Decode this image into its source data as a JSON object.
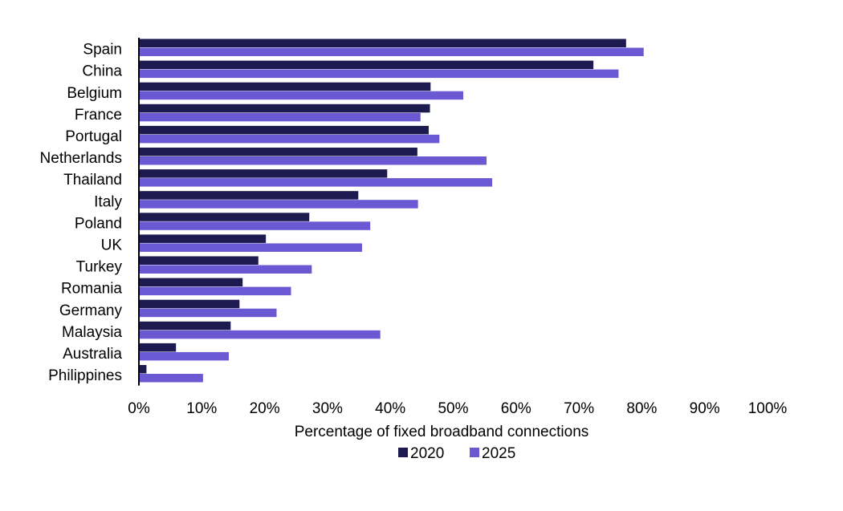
{
  "chart_data": {
    "type": "bar",
    "orientation": "horizontal",
    "categories": [
      "Spain",
      "China",
      "Belgium",
      "France",
      "Portugal",
      "Netherlands",
      "Thailand",
      "Italy",
      "Poland",
      "UK",
      "Turkey",
      "Romania",
      "Germany",
      "Malaysia",
      "Australia",
      "Philippines"
    ],
    "series": [
      {
        "name": "2020",
        "color": "#1c1a4f",
        "values": [
          77.5,
          72.3,
          46.4,
          46.3,
          46.1,
          44.3,
          39.5,
          34.9,
          27.1,
          20.2,
          19.0,
          16.5,
          16.0,
          14.6,
          5.9,
          1.2
        ]
      },
      {
        "name": "2025",
        "color": "#6b58d3",
        "values": [
          80.3,
          76.3,
          51.6,
          44.8,
          47.8,
          55.3,
          56.2,
          44.4,
          36.8,
          35.5,
          27.5,
          24.2,
          21.9,
          38.4,
          14.3,
          10.2
        ]
      }
    ],
    "xlabel": "Percentage of fixed broadband connections",
    "ylabel": "",
    "xlim": [
      0,
      100
    ],
    "xticks": [
      "0%",
      "10%",
      "20%",
      "30%",
      "40%",
      "50%",
      "60%",
      "70%",
      "80%",
      "90%",
      "100%"
    ],
    "grid": false,
    "legend": {
      "placement": "bottom-center",
      "entries": [
        "2020",
        "2025"
      ]
    }
  }
}
